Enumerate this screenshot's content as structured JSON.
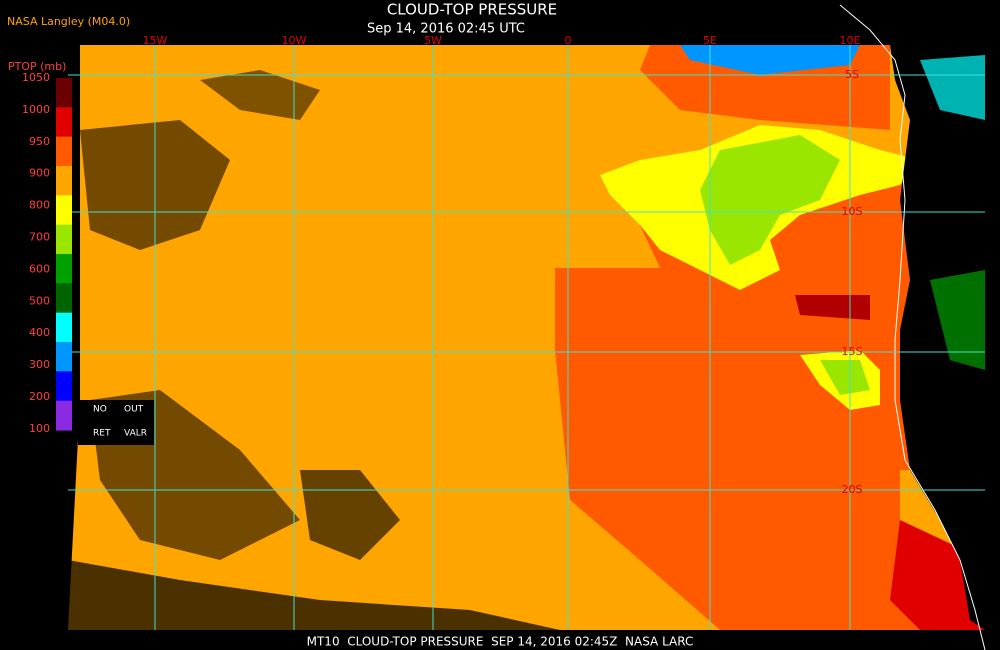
{
  "header": {
    "source": "NASA Langley (M04.0)",
    "title": "CLOUD-TOP PRESSURE",
    "subtitle": "Sep 14, 2016 02:45 UTC"
  },
  "legend": {
    "title": "PTOP (mb)",
    "labels": [
      1050,
      1000,
      950,
      900,
      800,
      700,
      600,
      500,
      400,
      300,
      200,
      100
    ],
    "colors": [
      "#6b0000",
      "#e00000",
      "#ff5a00",
      "#ffa500",
      "#ffff00",
      "#9ae600",
      "#00a000",
      "#006400",
      "#00ffff",
      "#0096ff",
      "#0000ff",
      "#8a2be2"
    ],
    "notes": [
      "NO",
      "OUT",
      "RET",
      "VALR"
    ]
  },
  "map": {
    "longitudes": [
      "15W",
      "10W",
      "5W",
      "0",
      "5E",
      "10E"
    ],
    "latitudes": [
      "5S",
      "10S",
      "15S",
      "20S"
    ]
  },
  "footer": {
    "text": "MT10  CLOUD-TOP PRESSURE  SEP 14, 2016 02:45Z  NASA LARC"
  }
}
